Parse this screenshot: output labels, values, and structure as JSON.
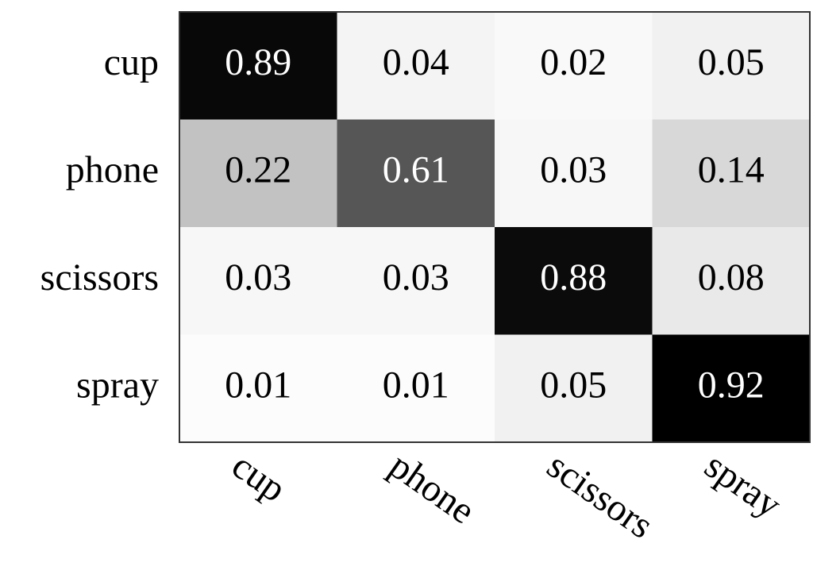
{
  "chart_data": {
    "type": "heatmap",
    "x": [
      "cup",
      "phone",
      "scissors",
      "spray"
    ],
    "y": [
      "cup",
      "phone",
      "scissors",
      "spray"
    ],
    "values": [
      [
        0.89,
        0.04,
        0.02,
        0.05
      ],
      [
        0.22,
        0.61,
        0.03,
        0.14
      ],
      [
        0.03,
        0.03,
        0.88,
        0.08
      ],
      [
        0.01,
        0.01,
        0.05,
        0.92
      ]
    ],
    "colors": [
      "#ffffff",
      "#000000"
    ]
  }
}
